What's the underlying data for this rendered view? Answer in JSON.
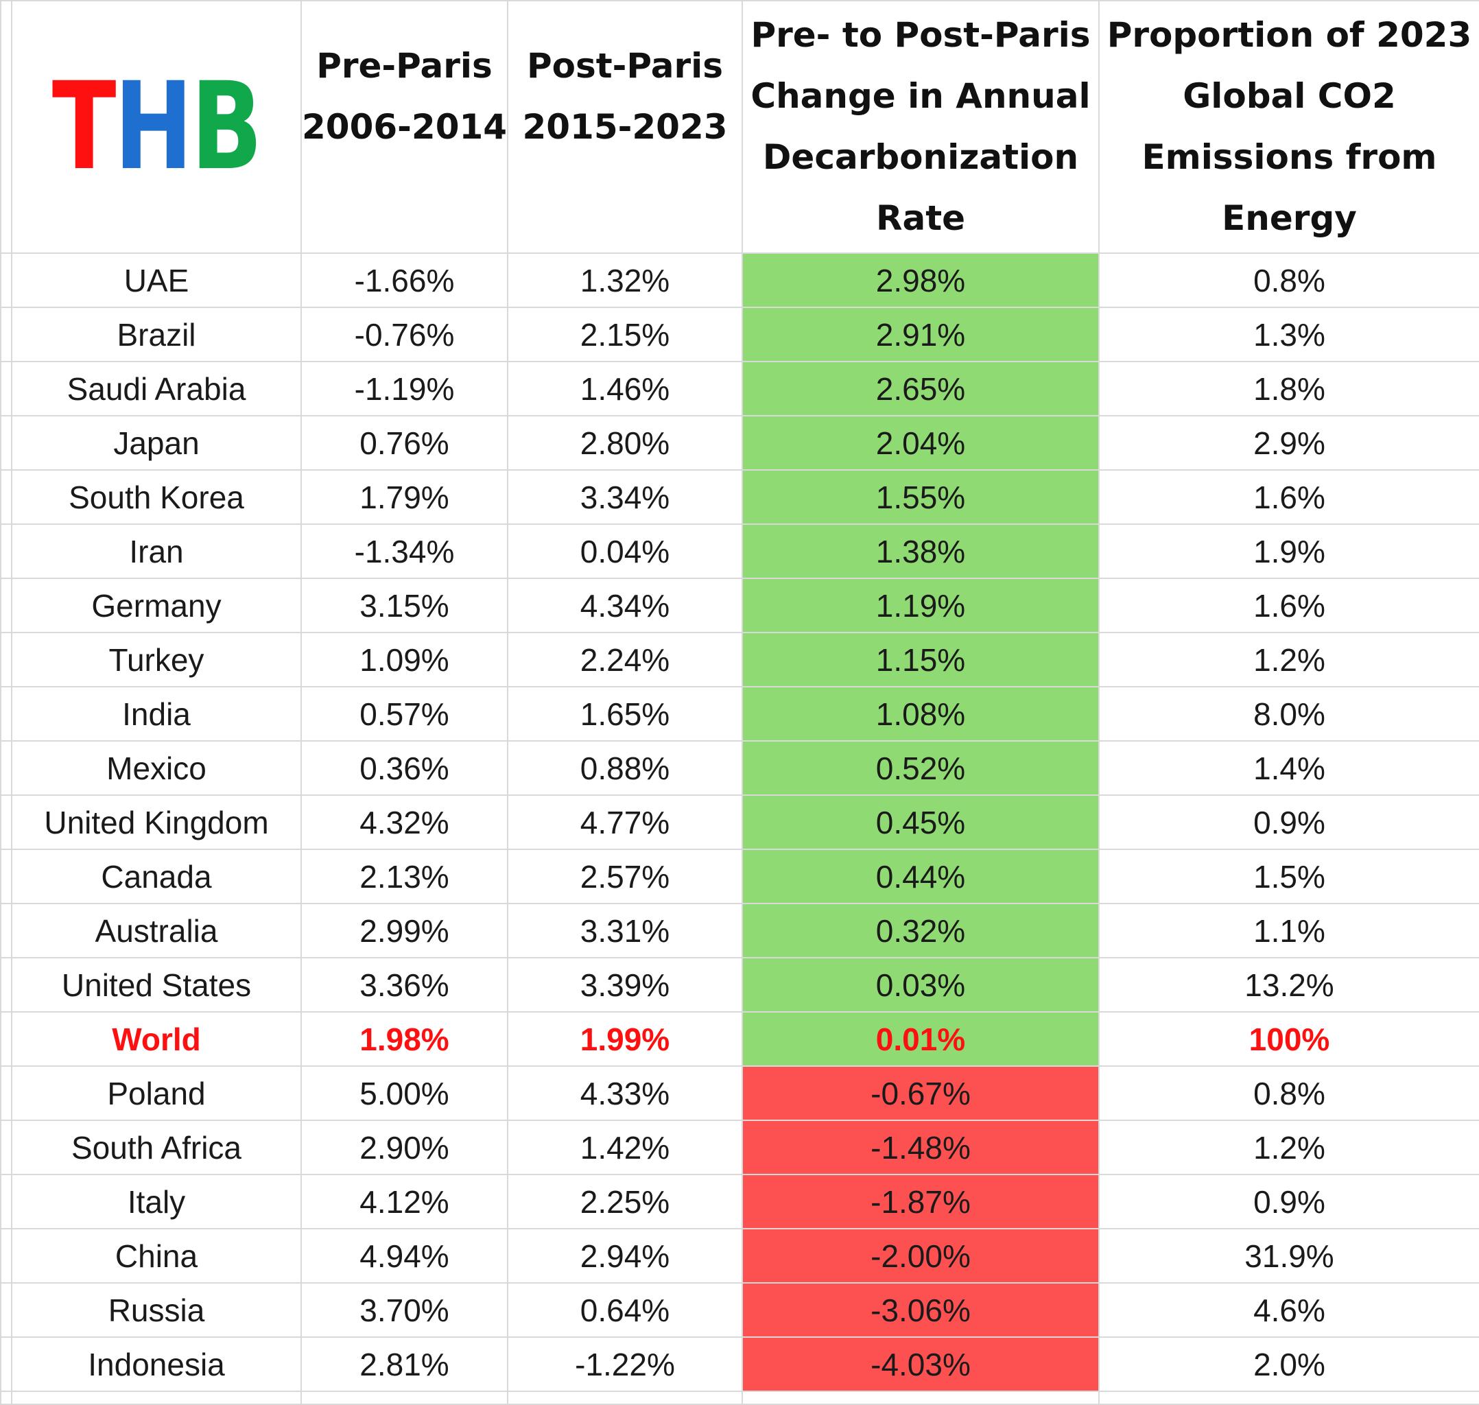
{
  "logo": {
    "text": "THB",
    "letters": [
      "T",
      "H",
      "B"
    ],
    "colors": [
      "#ff1010",
      "#1e6fcf",
      "#10a84a"
    ]
  },
  "headers": {
    "pre": [
      "Pre-Paris",
      "2006-2014"
    ],
    "post": [
      "Post-Paris",
      "2015-2023"
    ],
    "change": [
      "Pre- to Post-Paris",
      "Change in Annual",
      "Decarbonization",
      "Rate"
    ],
    "share": [
      "Proportion of 2023",
      "Global CO2",
      "Emissions from",
      "Energy"
    ]
  },
  "colors": {
    "positive_fill": "#8fda72",
    "negative_fill": "#fd5050",
    "highlight_text": "#ff1010"
  },
  "chart_data": {
    "type": "table",
    "title": "",
    "columns": [
      "",
      "Pre-Paris 2006-2014",
      "Post-Paris 2015-2023",
      "Pre- to Post-Paris Change in Annual Decarbonization Rate",
      "Proportion of 2023 Global CO2 Emissions from Energy"
    ],
    "rows": [
      {
        "country": "UAE",
        "pre": "-1.66%",
        "post": "1.32%",
        "change": "2.98%",
        "share": "0.8%",
        "fill": "green",
        "highlight": false
      },
      {
        "country": "Brazil",
        "pre": "-0.76%",
        "post": "2.15%",
        "change": "2.91%",
        "share": "1.3%",
        "fill": "green",
        "highlight": false
      },
      {
        "country": "Saudi Arabia",
        "pre": "-1.19%",
        "post": "1.46%",
        "change": "2.65%",
        "share": "1.8%",
        "fill": "green",
        "highlight": false
      },
      {
        "country": "Japan",
        "pre": "0.76%",
        "post": "2.80%",
        "change": "2.04%",
        "share": "2.9%",
        "fill": "green",
        "highlight": false
      },
      {
        "country": "South Korea",
        "pre": "1.79%",
        "post": "3.34%",
        "change": "1.55%",
        "share": "1.6%",
        "fill": "green",
        "highlight": false
      },
      {
        "country": "Iran",
        "pre": "-1.34%",
        "post": "0.04%",
        "change": "1.38%",
        "share": "1.9%",
        "fill": "green",
        "highlight": false
      },
      {
        "country": "Germany",
        "pre": "3.15%",
        "post": "4.34%",
        "change": "1.19%",
        "share": "1.6%",
        "fill": "green",
        "highlight": false
      },
      {
        "country": "Turkey",
        "pre": "1.09%",
        "post": "2.24%",
        "change": "1.15%",
        "share": "1.2%",
        "fill": "green",
        "highlight": false
      },
      {
        "country": "India",
        "pre": "0.57%",
        "post": "1.65%",
        "change": "1.08%",
        "share": "8.0%",
        "fill": "green",
        "highlight": false
      },
      {
        "country": "Mexico",
        "pre": "0.36%",
        "post": "0.88%",
        "change": "0.52%",
        "share": "1.4%",
        "fill": "green",
        "highlight": false
      },
      {
        "country": "United Kingdom",
        "pre": "4.32%",
        "post": "4.77%",
        "change": "0.45%",
        "share": "0.9%",
        "fill": "green",
        "highlight": false
      },
      {
        "country": "Canada",
        "pre": "2.13%",
        "post": "2.57%",
        "change": "0.44%",
        "share": "1.5%",
        "fill": "green",
        "highlight": false
      },
      {
        "country": "Australia",
        "pre": "2.99%",
        "post": "3.31%",
        "change": "0.32%",
        "share": "1.1%",
        "fill": "green",
        "highlight": false
      },
      {
        "country": "United States",
        "pre": "3.36%",
        "post": "3.39%",
        "change": "0.03%",
        "share": "13.2%",
        "fill": "green",
        "highlight": false
      },
      {
        "country": "World",
        "pre": "1.98%",
        "post": "1.99%",
        "change": "0.01%",
        "share": "100%",
        "fill": "green",
        "highlight": true
      },
      {
        "country": "Poland",
        "pre": "5.00%",
        "post": "4.33%",
        "change": "-0.67%",
        "share": "0.8%",
        "fill": "red",
        "highlight": false
      },
      {
        "country": "South Africa",
        "pre": "2.90%",
        "post": "1.42%",
        "change": "-1.48%",
        "share": "1.2%",
        "fill": "red",
        "highlight": false
      },
      {
        "country": "Italy",
        "pre": "4.12%",
        "post": "2.25%",
        "change": "-1.87%",
        "share": "0.9%",
        "fill": "red",
        "highlight": false
      },
      {
        "country": "China",
        "pre": "4.94%",
        "post": "2.94%",
        "change": "-2.00%",
        "share": "31.9%",
        "fill": "red",
        "highlight": false
      },
      {
        "country": "Russia",
        "pre": "3.70%",
        "post": "0.64%",
        "change": "-3.06%",
        "share": "4.6%",
        "fill": "red",
        "highlight": false
      },
      {
        "country": "Indonesia",
        "pre": "2.81%",
        "post": "-1.22%",
        "change": "-4.03%",
        "share": "2.0%",
        "fill": "red",
        "highlight": false
      }
    ]
  }
}
